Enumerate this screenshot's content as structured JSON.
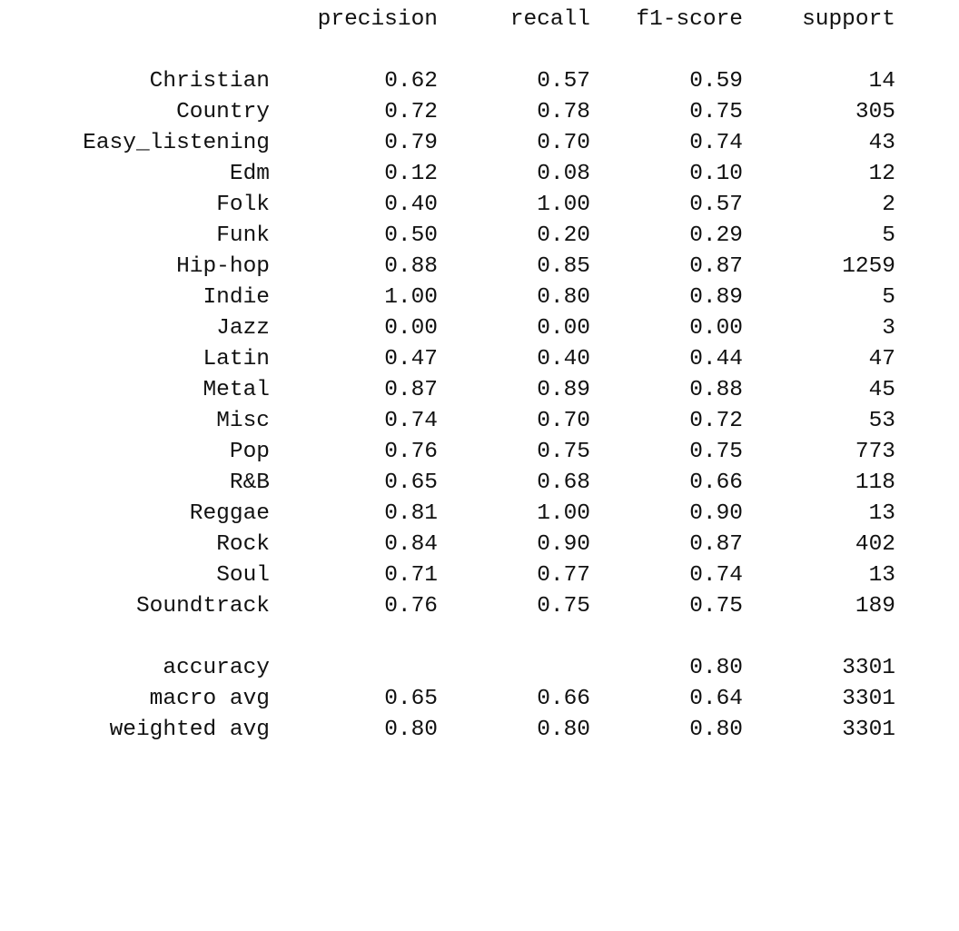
{
  "header": {
    "precision": "precision",
    "recall": "recall",
    "f1_score": "f1-score",
    "support": "support"
  },
  "classes": [
    {
      "label": "Christian",
      "precision": "0.62",
      "recall": "0.57",
      "f1": "0.59",
      "support": "14"
    },
    {
      "label": "Country",
      "precision": "0.72",
      "recall": "0.78",
      "f1": "0.75",
      "support": "305"
    },
    {
      "label": "Easy_listening",
      "precision": "0.79",
      "recall": "0.70",
      "f1": "0.74",
      "support": "43"
    },
    {
      "label": "Edm",
      "precision": "0.12",
      "recall": "0.08",
      "f1": "0.10",
      "support": "12"
    },
    {
      "label": "Folk",
      "precision": "0.40",
      "recall": "1.00",
      "f1": "0.57",
      "support": "2"
    },
    {
      "label": "Funk",
      "precision": "0.50",
      "recall": "0.20",
      "f1": "0.29",
      "support": "5"
    },
    {
      "label": "Hip-hop",
      "precision": "0.88",
      "recall": "0.85",
      "f1": "0.87",
      "support": "1259"
    },
    {
      "label": "Indie",
      "precision": "1.00",
      "recall": "0.80",
      "f1": "0.89",
      "support": "5"
    },
    {
      "label": "Jazz",
      "precision": "0.00",
      "recall": "0.00",
      "f1": "0.00",
      "support": "3"
    },
    {
      "label": "Latin",
      "precision": "0.47",
      "recall": "0.40",
      "f1": "0.44",
      "support": "47"
    },
    {
      "label": "Metal",
      "precision": "0.87",
      "recall": "0.89",
      "f1": "0.88",
      "support": "45"
    },
    {
      "label": "Misc",
      "precision": "0.74",
      "recall": "0.70",
      "f1": "0.72",
      "support": "53"
    },
    {
      "label": "Pop",
      "precision": "0.76",
      "recall": "0.75",
      "f1": "0.75",
      "support": "773"
    },
    {
      "label": "R&B",
      "precision": "0.65",
      "recall": "0.68",
      "f1": "0.66",
      "support": "118"
    },
    {
      "label": "Reggae",
      "precision": "0.81",
      "recall": "1.00",
      "f1": "0.90",
      "support": "13"
    },
    {
      "label": "Rock",
      "precision": "0.84",
      "recall": "0.90",
      "f1": "0.87",
      "support": "402"
    },
    {
      "label": "Soul",
      "precision": "0.71",
      "recall": "0.77",
      "f1": "0.74",
      "support": "13"
    },
    {
      "label": "Soundtrack",
      "precision": "0.76",
      "recall": "0.75",
      "f1": "0.75",
      "support": "189"
    }
  ],
  "summary": [
    {
      "label": "accuracy",
      "precision": "",
      "recall": "",
      "f1": "0.80",
      "support": "3301"
    },
    {
      "label": "macro avg",
      "precision": "0.65",
      "recall": "0.66",
      "f1": "0.64",
      "support": "3301"
    },
    {
      "label": "weighted avg",
      "precision": "0.80",
      "recall": "0.80",
      "f1": "0.80",
      "support": "3301"
    }
  ]
}
